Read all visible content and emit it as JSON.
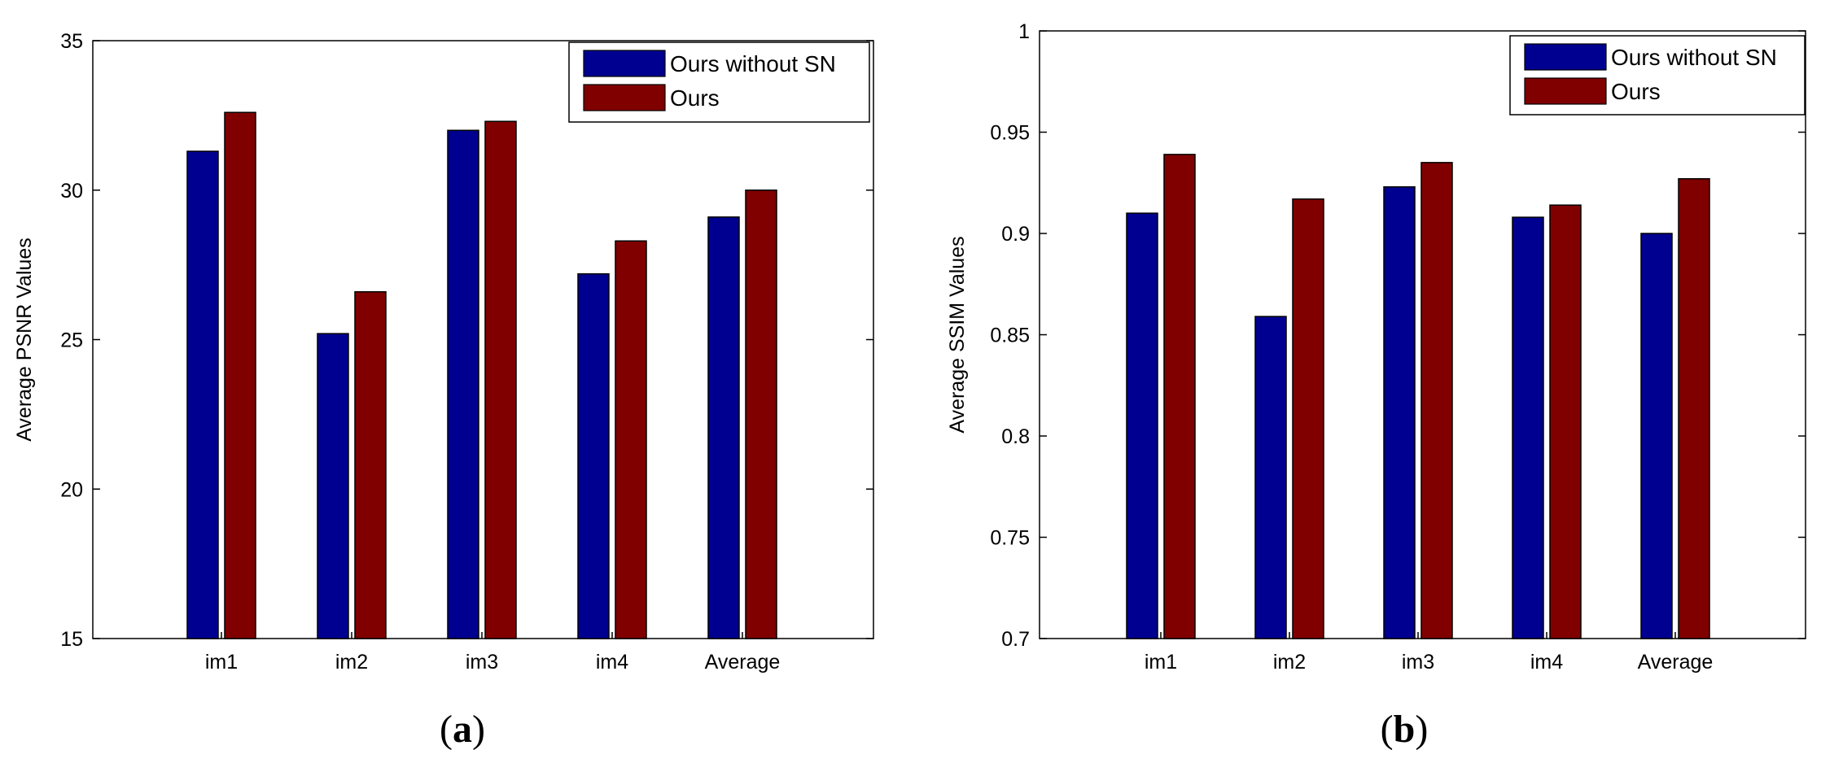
{
  "chart_data": [
    {
      "type": "bar",
      "panel": "a",
      "caption": {
        "open": "(",
        "letter": "a",
        "close": ")"
      },
      "title": "",
      "xlabel": "",
      "ylabel": "Average PSNR Values",
      "ylim": [
        15,
        35
      ],
      "yticks": [
        15,
        20,
        25,
        30,
        35
      ],
      "ytick_labels": [
        "15",
        "20",
        "25",
        "30",
        "35"
      ],
      "categories": [
        "im1",
        "im2",
        "im3",
        "im4",
        "Average"
      ],
      "series": [
        {
          "name": "Ours without SN",
          "color": "#000090",
          "values": [
            31.3,
            25.2,
            32.0,
            27.2,
            29.1
          ]
        },
        {
          "name": "Ours",
          "color": "#800000",
          "values": [
            32.6,
            26.6,
            32.3,
            28.3,
            30.0
          ]
        }
      ],
      "legend": "top-right",
      "grid": false
    },
    {
      "type": "bar",
      "panel": "b",
      "caption": {
        "open": "(",
        "letter": "b",
        "close": ")"
      },
      "title": "",
      "xlabel": "",
      "ylabel": "Average SSIM Values",
      "ylim": [
        0.7,
        1.0
      ],
      "yticks": [
        0.7,
        0.75,
        0.8,
        0.85,
        0.9,
        0.95,
        1.0
      ],
      "ytick_labels": [
        "0.7",
        "0.75",
        "0.8",
        "0.85",
        "0.9",
        "0.95",
        "1"
      ],
      "categories": [
        "im1",
        "im2",
        "im3",
        "im4",
        "Average"
      ],
      "series": [
        {
          "name": "Ours without SN",
          "color": "#000090",
          "values": [
            0.91,
            0.859,
            0.923,
            0.908,
            0.9
          ]
        },
        {
          "name": "Ours",
          "color": "#800000",
          "values": [
            0.939,
            0.917,
            0.935,
            0.914,
            0.927
          ]
        }
      ],
      "legend": "top-right",
      "grid": false
    }
  ]
}
